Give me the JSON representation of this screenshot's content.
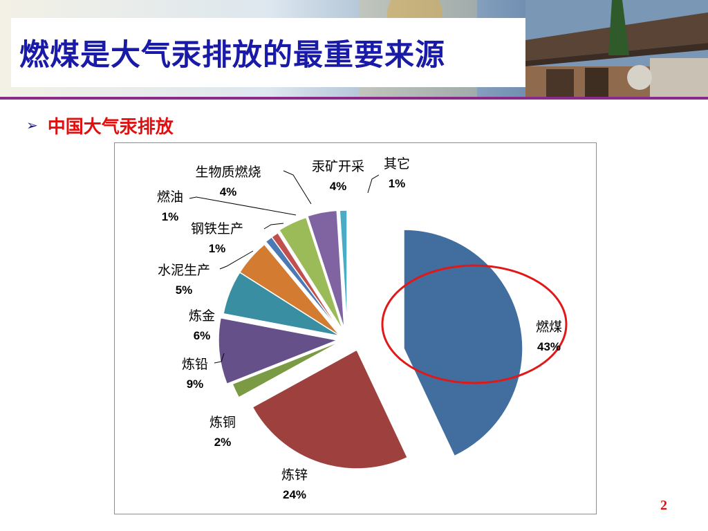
{
  "slide": {
    "title": "燃煤是大气汞排放的最重要来源",
    "bullet_marker": "➢",
    "bullet": "中国大气汞排放",
    "page_number": "2"
  },
  "colors": {
    "title": "#1a1aa8",
    "bullet_text": "#e01010",
    "header_rule": "#8a2b8a",
    "highlight_ellipse": "#e01818"
  },
  "chart_data": {
    "type": "pie",
    "exploded": true,
    "categories": [
      "燃煤",
      "炼锌",
      "炼铜",
      "炼铅",
      "炼金",
      "水泥生产",
      "钢铁生产",
      "燃油",
      "生物质燃烧",
      "汞矿开采",
      "其它"
    ],
    "values": [
      43,
      24,
      2,
      9,
      6,
      5,
      1,
      1,
      4,
      4,
      1
    ],
    "labels": [
      "43%",
      "24%",
      "2%",
      "9%",
      "6%",
      "5%",
      "1%",
      "1%",
      "4%",
      "4%",
      "1%"
    ],
    "colors": [
      "#416e9f",
      "#9e403d",
      "#7a9a43",
      "#65508a",
      "#3a8ea2",
      "#d47b32",
      "#4a79b4",
      "#c0504d",
      "#9bbb59",
      "#8064a2",
      "#4bacc6"
    ],
    "highlighted": "燃煤",
    "legend": "none"
  }
}
